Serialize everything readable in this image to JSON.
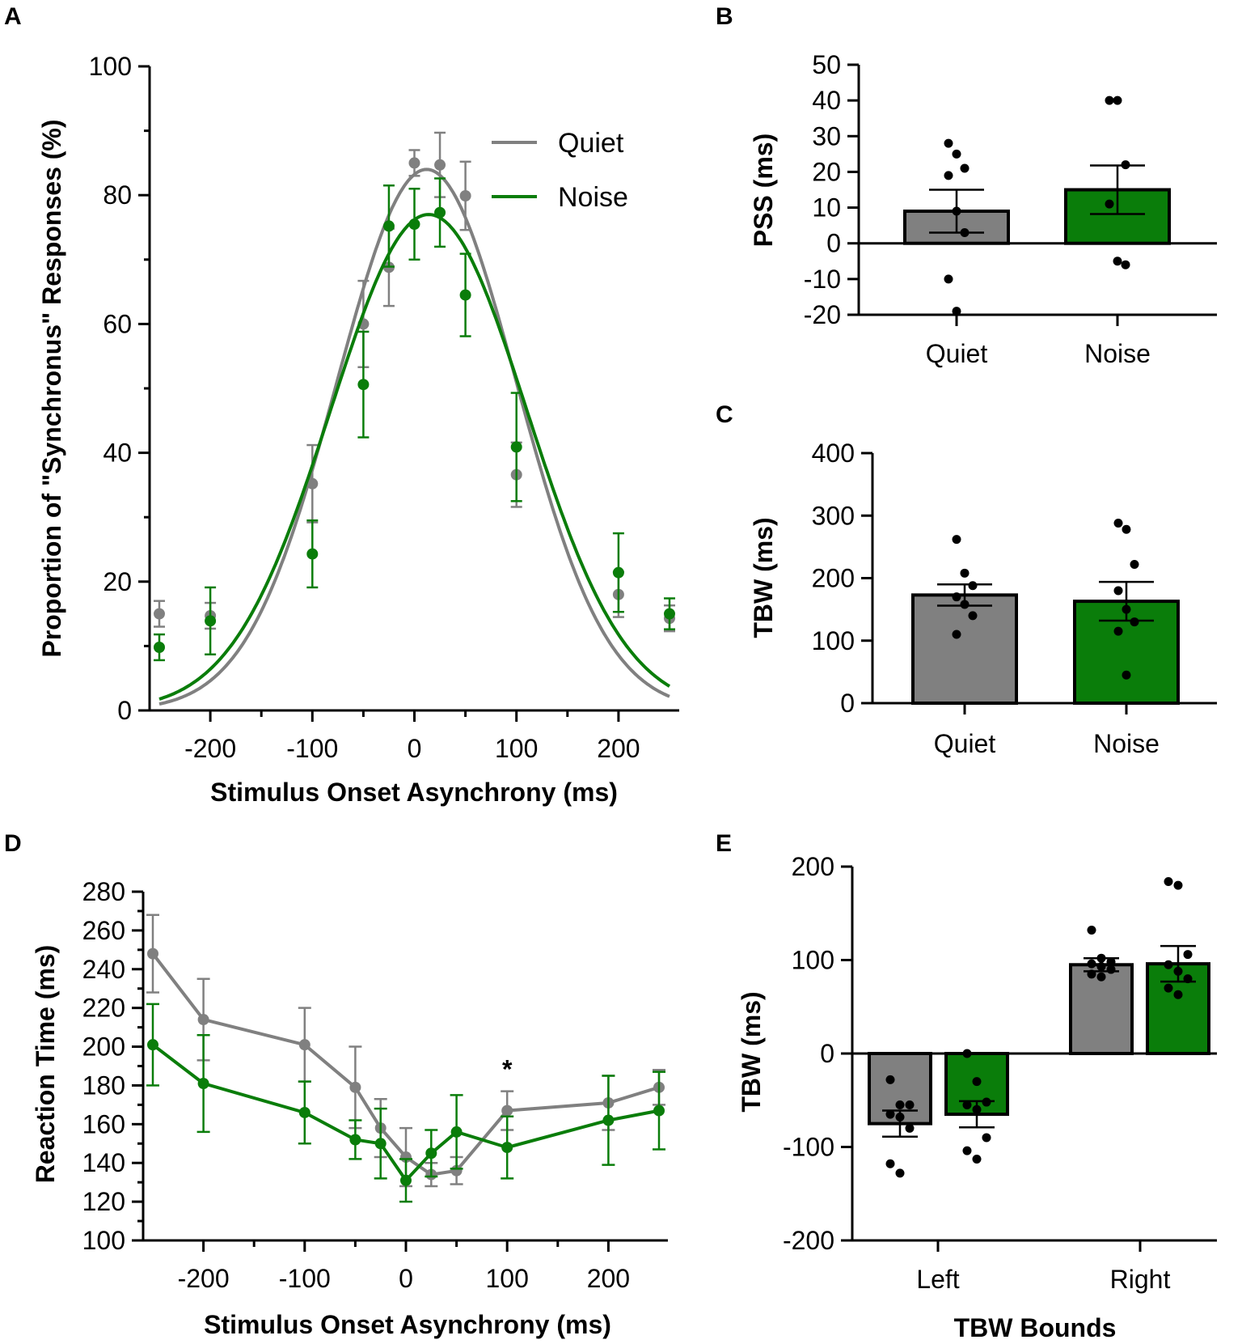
{
  "colors": {
    "quiet": "#808080",
    "noise": "#0a7d0a",
    "axis": "#000000",
    "point": "#000000"
  },
  "chart_data": [
    {
      "panel": "A",
      "type": "scatter",
      "xlabel": "Stimulus Onset Asynchrony (ms)",
      "ylabel": "Proportion of \"Synchronus\" Responses (%)",
      "xlim": [
        -260,
        260
      ],
      "ylim": [
        0,
        100
      ],
      "xticks": [
        -200,
        -100,
        0,
        100,
        200
      ],
      "xtick_labels": [
        "-200",
        "-100",
        "0",
        "100",
        "200"
      ],
      "yticks": [
        0,
        20,
        40,
        60,
        80,
        100
      ],
      "ytick_labels": [
        "0",
        "20",
        "40",
        "60",
        "80",
        "100"
      ],
      "legend": [
        "Quiet",
        "Noise"
      ],
      "legend_position": "top-right",
      "x": [
        -250,
        -200,
        -100,
        -50,
        -25,
        0,
        25,
        50,
        100,
        200,
        250
      ],
      "series": [
        {
          "name": "Quiet",
          "color_key": "quiet",
          "values": [
            15,
            14.7,
            35.2,
            60,
            68.8,
            85,
            84.7,
            79.9,
            36.6,
            18,
            14.3
          ],
          "errors": [
            2,
            2,
            6,
            6.7,
            6,
            2,
            5,
            5.3,
            5,
            3.5,
            2
          ],
          "fit": {
            "amplitude": 84,
            "mean": 12,
            "sd": 88
          }
        },
        {
          "name": "Noise",
          "color_key": "noise",
          "values": [
            9.8,
            13.9,
            24.3,
            50.6,
            75.2,
            75.5,
            77.3,
            64.5,
            40.9,
            21.4,
            15
          ],
          "errors": [
            2,
            5.2,
            5.2,
            8.2,
            6.3,
            5.5,
            5.3,
            6.4,
            8.4,
            6.1,
            2.4
          ],
          "fit": {
            "amplitude": 77,
            "mean": 14,
            "sd": 96
          }
        }
      ]
    },
    {
      "panel": "B",
      "type": "bar",
      "ylabel": "PSS (ms)",
      "categories": [
        "Quiet",
        "Noise"
      ],
      "ylim": [
        -20,
        50
      ],
      "yticks": [
        -20,
        -10,
        0,
        10,
        20,
        30,
        40,
        50
      ],
      "ytick_labels": [
        "-20",
        "-10",
        "0",
        "10",
        "20",
        "30",
        "40",
        "50"
      ],
      "series": [
        {
          "name": "Quiet",
          "color_key": "quiet",
          "value": 9,
          "sem": 6,
          "points": [
            28,
            25,
            21,
            19,
            9,
            3,
            -10,
            -19
          ]
        },
        {
          "name": "Noise",
          "color_key": "noise",
          "value": 15,
          "sem": 6.8,
          "points": [
            40,
            40,
            22,
            11,
            -5,
            -6
          ]
        }
      ]
    },
    {
      "panel": "C",
      "type": "bar",
      "ylabel": "TBW (ms)",
      "categories": [
        "Quiet",
        "Noise"
      ],
      "ylim": [
        0,
        400
      ],
      "yticks": [
        0,
        100,
        200,
        300,
        400
      ],
      "ytick_labels": [
        "0",
        "100",
        "200",
        "300",
        "400"
      ],
      "series": [
        {
          "name": "Quiet",
          "color_key": "quiet",
          "value": 173,
          "sem": 17,
          "points": [
            262,
            208,
            188,
            170,
            158,
            140,
            110
          ]
        },
        {
          "name": "Noise",
          "color_key": "noise",
          "value": 163,
          "sem": 31,
          "points": [
            288,
            278,
            222,
            180,
            150,
            130,
            115,
            45
          ]
        }
      ]
    },
    {
      "panel": "D",
      "type": "line",
      "xlabel": "Stimulus Onset Asynchrony (ms)",
      "ylabel": "Reaction Time (ms)",
      "xlim": [
        -260,
        260
      ],
      "ylim": [
        100,
        280
      ],
      "xticks": [
        -200,
        -100,
        0,
        100,
        200
      ],
      "xtick_labels": [
        "-200",
        "-100",
        "0",
        "100",
        "200"
      ],
      "yticks": [
        100,
        120,
        140,
        160,
        180,
        200,
        220,
        240,
        260,
        280
      ],
      "ytick_labels": [
        "100",
        "120",
        "140",
        "160",
        "180",
        "200",
        "220",
        "240",
        "260",
        "280"
      ],
      "annotation": {
        "text": "*",
        "x": 100,
        "y": 188
      },
      "x": [
        -250,
        -200,
        -100,
        -50,
        -25,
        0,
        25,
        50,
        100,
        200,
        250
      ],
      "series": [
        {
          "name": "Quiet",
          "color_key": "quiet",
          "values": [
            248,
            214,
            201,
            179,
            158,
            143,
            134,
            136,
            167,
            171,
            179
          ],
          "errors": [
            20,
            21,
            19,
            21,
            15,
            15,
            6,
            7,
            10,
            14,
            9
          ]
        },
        {
          "name": "Noise",
          "color_key": "noise",
          "values": [
            201,
            181,
            166,
            152,
            150,
            131,
            145,
            156,
            148,
            162,
            167
          ],
          "errors": [
            21,
            25,
            16,
            10,
            18,
            11,
            12,
            19,
            16,
            23,
            20
          ]
        }
      ]
    },
    {
      "panel": "E",
      "type": "bar",
      "xlabel": "TBW Bounds",
      "ylabel": "TBW (ms)",
      "categories": [
        "Left",
        "Right"
      ],
      "ylim": [
        -200,
        200
      ],
      "yticks": [
        -200,
        -100,
        0,
        100,
        200
      ],
      "ytick_labels": [
        "-200",
        "-100",
        "0",
        "100",
        "200"
      ],
      "series": [
        {
          "name": "Quiet",
          "color_key": "quiet",
          "values": [
            -75,
            95
          ],
          "sem": [
            14,
            7
          ],
          "points": [
            [
              -28,
              -55,
              -55,
              -65,
              -68,
              -80,
              -118,
              -128
            ],
            [
              132,
              102,
              98,
              96,
              93,
              90,
              85,
              82
            ]
          ]
        },
        {
          "name": "Noise",
          "color_key": "noise",
          "values": [
            -65,
            96
          ],
          "sem": [
            14,
            19
          ],
          "points": [
            [
              0,
              -30,
              -52,
              -55,
              -60,
              -90,
              -104,
              -113
            ],
            [
              184,
              180,
              106,
              95,
              88,
              80,
              70,
              63
            ]
          ]
        }
      ]
    }
  ]
}
